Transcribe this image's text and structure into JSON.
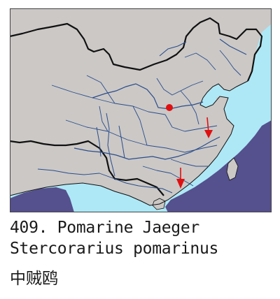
{
  "map": {
    "colors": {
      "land": "#cbc8c6",
      "sea": "#aee8f6",
      "range": "#55508e",
      "border": "#111111",
      "river": "#2b4d8a",
      "record": "#e01010",
      "frame": "#444444"
    },
    "markers": [
      {
        "kind": "dot",
        "label": "record-dot"
      },
      {
        "kind": "arrow",
        "label": "record-arrow-east"
      },
      {
        "kind": "arrow",
        "label": "record-arrow-south"
      }
    ]
  },
  "caption": {
    "number_line": "409. Pomarine Jaeger",
    "scientific_name": "Stercorarius pomarinus",
    "chinese_name": "中贼鸥"
  }
}
